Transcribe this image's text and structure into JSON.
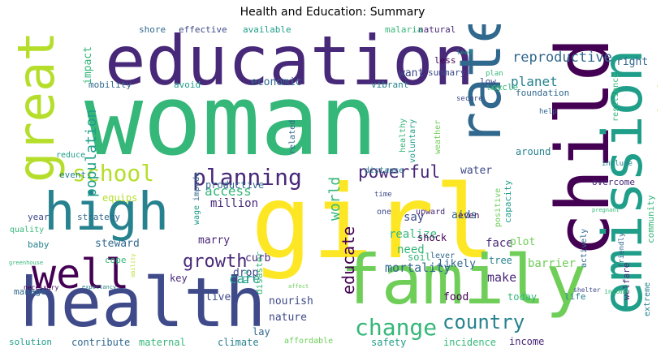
{
  "title": "Health and Education: Summary",
  "colors": {
    "viridis": [
      "#440154",
      "#482878",
      "#3e4a89",
      "#31688e",
      "#26828e",
      "#1f9e89",
      "#35b779",
      "#6ece58",
      "#b5de2b",
      "#fde725"
    ]
  },
  "words": [
    "woman",
    "girl",
    "education",
    "child",
    "family",
    "health",
    "high",
    "emission",
    "great",
    "rate",
    "well",
    "school",
    "planning",
    "powerful",
    "change",
    "country",
    "growth",
    "population",
    "world",
    "educate",
    "reproductive",
    "planet",
    "economic",
    "want",
    "right",
    "impact",
    "effective",
    "available",
    "shore",
    "natural",
    "malaria",
    "mobility",
    "avoid",
    "vibrant",
    "cycle",
    "less",
    "summary",
    "low",
    "foundation",
    "resilience",
    "healthy",
    "secure",
    "help",
    "cultural",
    "around",
    "related",
    "access",
    "say",
    "weather",
    "voluntary",
    "million",
    "marry",
    "productive",
    "equips",
    "strategy",
    "year",
    "quality",
    "baby",
    "manage",
    "steward",
    "drop",
    "curb",
    "cope",
    "key",
    "care",
    "live",
    "hiv",
    "disaster",
    "nourish",
    "nature",
    "climate",
    "maternal",
    "contribute",
    "solution",
    "lay",
    "incidence",
    "safety",
    "affordable",
    "income",
    "today",
    "life",
    "barrier",
    "mortality",
    "make",
    "face",
    "realize",
    "need",
    "likely",
    "food",
    "tree",
    "soil",
    "shock",
    "lever",
    "even",
    "aids",
    "plot",
    "positive",
    "actively",
    "friendly",
    "extreme",
    "welfare",
    "water",
    "capacity",
    "overcome",
    "include",
    "community",
    "agricultural",
    "wage",
    "reduce",
    "event",
    "impede",
    "upward",
    "one",
    "time",
    "distance",
    "plan",
    "lack",
    "pregnant",
    "greenhouse",
    "necessary",
    "expectancy",
    "ability",
    "affect",
    "shelter",
    "income",
    "lead"
  ]
}
